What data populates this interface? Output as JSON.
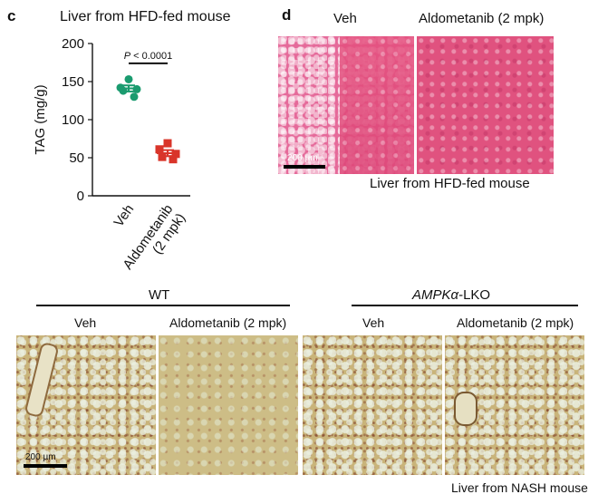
{
  "panel_c": {
    "letter": "c",
    "title": "Liver from HFD-fed mouse",
    "significance": "P < 0.0001",
    "chart_data": {
      "type": "scatter",
      "ylabel": "TAG (mg/g)",
      "ylim": [
        0,
        200
      ],
      "yticks": [
        "0",
        "50",
        "100",
        "150",
        "200"
      ],
      "categories": [
        "Veh",
        "Aldometanib\n(2 mpk)"
      ],
      "colors": {
        "veh": "#1a9b6f",
        "ald": "#d9352a"
      },
      "series": [
        {
          "category": "Veh",
          "values": [
            153,
            142,
            140,
            138,
            130
          ],
          "mean": 141,
          "sem": 4
        },
        {
          "category": "Aldometanib (2 mpk)",
          "values": [
            69,
            61,
            55,
            51,
            48
          ],
          "mean": 56,
          "sem": 4
        }
      ]
    }
  },
  "panel_d": {
    "letter": "d",
    "veh_label": "Veh",
    "ald_label": "Aldometanib (2 mpk)",
    "scale_text": "200 µm",
    "caption": "Liver from HFD-fed mouse"
  },
  "panel_bottom": {
    "wt_label": "WT",
    "lko_italic": "AMPKα",
    "lko_suffix": "-LKO",
    "veh_label": "Veh",
    "ald_label": "Aldometanib (2 mpk)",
    "scale_text": "200 µm",
    "caption": "Liver from NASH mouse"
  }
}
